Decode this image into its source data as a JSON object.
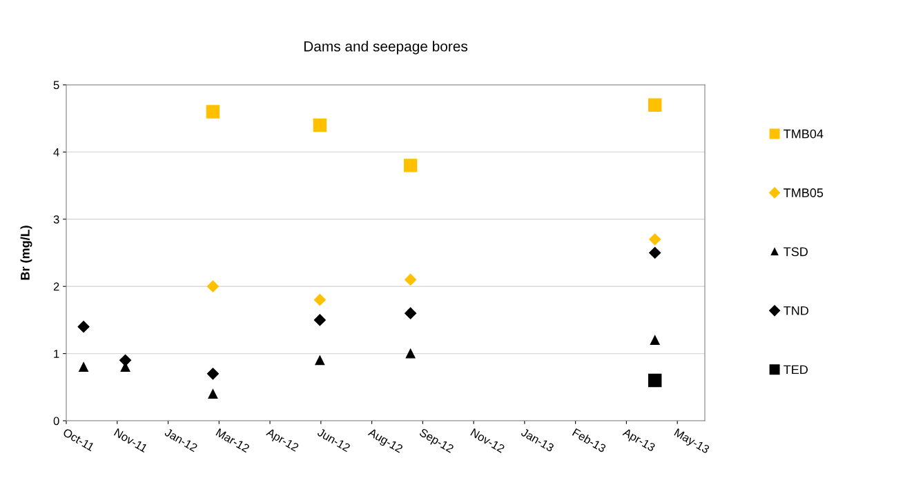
{
  "chart_data": {
    "type": "scatter",
    "title": "Dams and seepage bores",
    "ylabel": "Br (mg/L)",
    "xlim": [
      "2011-10-09",
      "2013-06-27"
    ],
    "ylim": [
      0,
      5
    ],
    "yticks": [
      0,
      1,
      2,
      3,
      4,
      5
    ],
    "xticks": [
      {
        "value": "2011-10-09",
        "label": "Oct-11"
      },
      {
        "value": "2011-11-28",
        "label": "Nov-11"
      },
      {
        "value": "2012-01-17",
        "label": "Jan-12"
      },
      {
        "value": "2012-03-07",
        "label": "Mar-12"
      },
      {
        "value": "2012-04-26",
        "label": "Apr-12"
      },
      {
        "value": "2012-06-15",
        "label": "Jun-12"
      },
      {
        "value": "2012-08-04",
        "label": "Aug-12"
      },
      {
        "value": "2012-09-23",
        "label": "Sep-12"
      },
      {
        "value": "2012-11-12",
        "label": "Nov-12"
      },
      {
        "value": "2013-01-01",
        "label": "Jan-13"
      },
      {
        "value": "2013-02-20",
        "label": "Feb-13"
      },
      {
        "value": "2013-04-11",
        "label": "Apr-13"
      },
      {
        "value": "2013-05-31",
        "label": "May-13"
      }
    ],
    "grid": "y",
    "legend": "right",
    "series": [
      {
        "name": "TMB04",
        "color": "#ffc000",
        "marker": "square",
        "x": [
          "2012-03-01",
          "2012-06-14",
          "2012-09-11",
          "2013-05-09"
        ],
        "values": [
          4.6,
          4.4,
          3.8,
          4.7
        ]
      },
      {
        "name": "TMB05",
        "color": "#ffc000",
        "marker": "diamond",
        "x": [
          "2012-03-01",
          "2012-06-14",
          "2012-09-11",
          "2013-05-09"
        ],
        "values": [
          2.0,
          1.8,
          2.1,
          2.7
        ]
      },
      {
        "name": "TSD",
        "color": "#000000",
        "marker": "triangle",
        "x": [
          "2011-10-26",
          "2011-12-06",
          "2012-03-01",
          "2012-06-14",
          "2012-09-11",
          "2013-05-09"
        ],
        "values": [
          0.8,
          0.8,
          0.4,
          0.9,
          1.0,
          1.2
        ]
      },
      {
        "name": "TND",
        "color": "#000000",
        "marker": "diamond",
        "x": [
          "2011-10-26",
          "2011-12-06",
          "2012-03-01",
          "2012-06-14",
          "2012-09-11",
          "2013-05-09"
        ],
        "values": [
          1.4,
          0.9,
          0.7,
          1.5,
          1.6,
          2.5
        ]
      },
      {
        "name": "TED",
        "color": "#000000",
        "marker": "square",
        "x": [
          "2013-05-09"
        ],
        "values": [
          0.6
        ]
      }
    ]
  }
}
